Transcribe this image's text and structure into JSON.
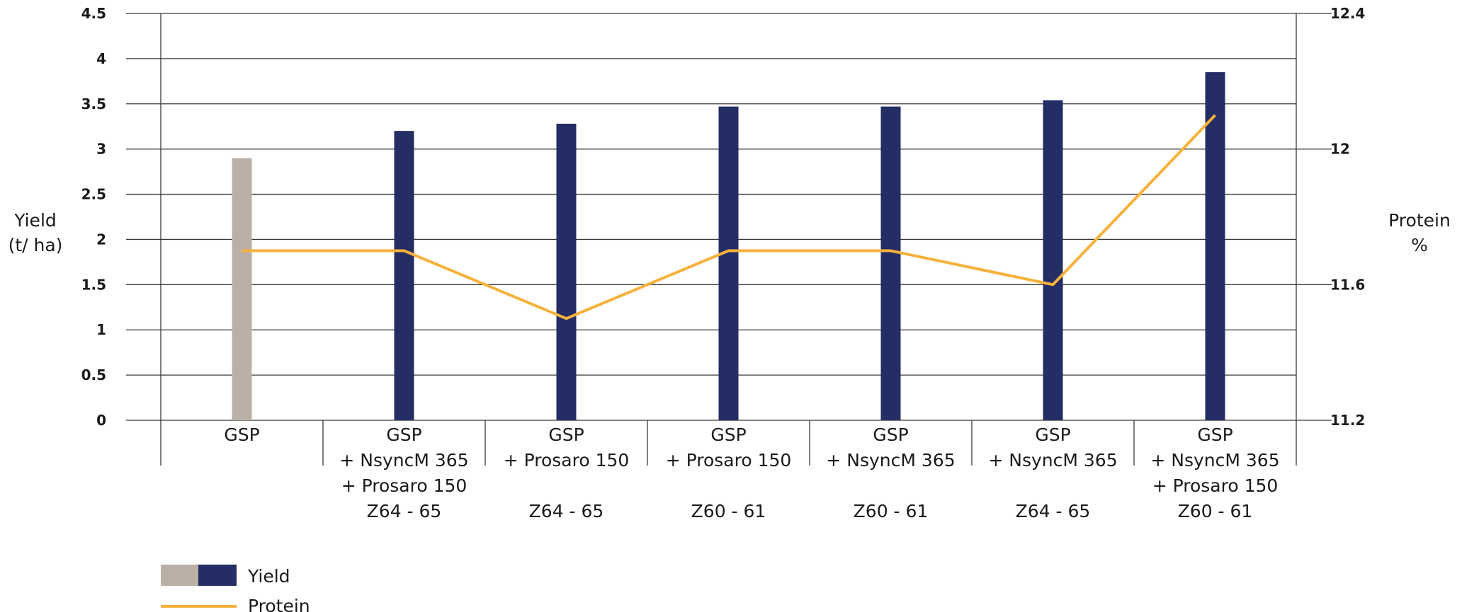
{
  "chart_data": {
    "type": "bar",
    "categories": [
      [
        "GSP"
      ],
      [
        "GSP",
        "+ NsyncM 365",
        "+ Prosaro 150",
        "Z64 - 65"
      ],
      [
        "GSP",
        "+ Prosaro 150",
        "",
        "Z64 - 65"
      ],
      [
        "GSP",
        "+ Prosaro 150",
        "",
        "Z60 - 61"
      ],
      [
        "GSP",
        "+ NsyncM 365",
        "",
        "Z60 - 61"
      ],
      [
        "GSP",
        "+ NsyncM 365",
        "",
        "Z64 - 65"
      ],
      [
        "GSP",
        "+ NsyncM 365",
        "+ Prosaro 150",
        "Z60 - 61"
      ]
    ],
    "series": [
      {
        "name": "Yield",
        "type": "bar",
        "axis": "left",
        "values": [
          2.9,
          3.2,
          3.28,
          3.47,
          3.47,
          3.54,
          3.85
        ],
        "colors": [
          "#bab0a6",
          "#242d64",
          "#242d64",
          "#242d64",
          "#242d64",
          "#242d64",
          "#242d64"
        ]
      },
      {
        "name": "Protein",
        "type": "line",
        "axis": "right",
        "values": [
          11.7,
          11.7,
          11.5,
          11.7,
          11.7,
          11.6,
          12.1
        ],
        "color": "#f6b13b"
      }
    ],
    "ylabel_left": [
      "Yield",
      "(t/ ha)"
    ],
    "ylabel_right": [
      "Protein",
      "%"
    ],
    "ylim_left": [
      0,
      4.5
    ],
    "yticks_left": [
      "0",
      "0.5",
      "1",
      "1.5",
      "2",
      "2.5",
      "3",
      "3.5",
      "4",
      "4.5"
    ],
    "ylim_right": [
      11.2,
      12.4
    ],
    "yticks_right": [
      "11.2",
      "11.6",
      "12",
      "12.4"
    ],
    "grid": true,
    "legend_position": "bottom-left",
    "legend": [
      {
        "label": "Yield",
        "kind": "bar",
        "colors": [
          "#bab0a6",
          "#242d64"
        ]
      },
      {
        "label": "Protein",
        "kind": "line",
        "color": "#f6b13b"
      }
    ]
  }
}
